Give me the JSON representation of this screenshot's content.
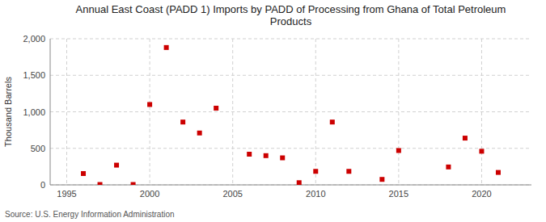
{
  "chart_data": {
    "type": "scatter",
    "title": "Annual East Coast (PADD 1) Imports by PADD of Processing from Ghana of Total Petroleum\nProducts",
    "y_label": "Thousand Barrels",
    "source": "Source: U.S. Energy Information Administration",
    "x": [
      1996,
      1997,
      1998,
      1999,
      2000,
      2001,
      2002,
      2003,
      2004,
      2006,
      2007,
      2008,
      2009,
      2010,
      2011,
      2012,
      2014,
      2015,
      2018,
      2019,
      2020,
      2021
    ],
    "values": [
      155,
      5,
      270,
      5,
      1100,
      1880,
      860,
      710,
      1050,
      420,
      400,
      370,
      30,
      185,
      860,
      185,
      75,
      470,
      245,
      640,
      460,
      170
    ],
    "color": "#cc0000",
    "marker": "square",
    "xlim": [
      1994,
      2023
    ],
    "ylim": [
      0,
      2000
    ],
    "xticks": [
      1995,
      2000,
      2005,
      2010,
      2015,
      2020
    ],
    "yticks": [
      0,
      500,
      {
        "value": 1000,
        "label": "1,000"
      },
      {
        "value": 1500,
        "label": "1,500"
      },
      {
        "value": 2000,
        "label": "2,000"
      }
    ],
    "grid": true
  }
}
